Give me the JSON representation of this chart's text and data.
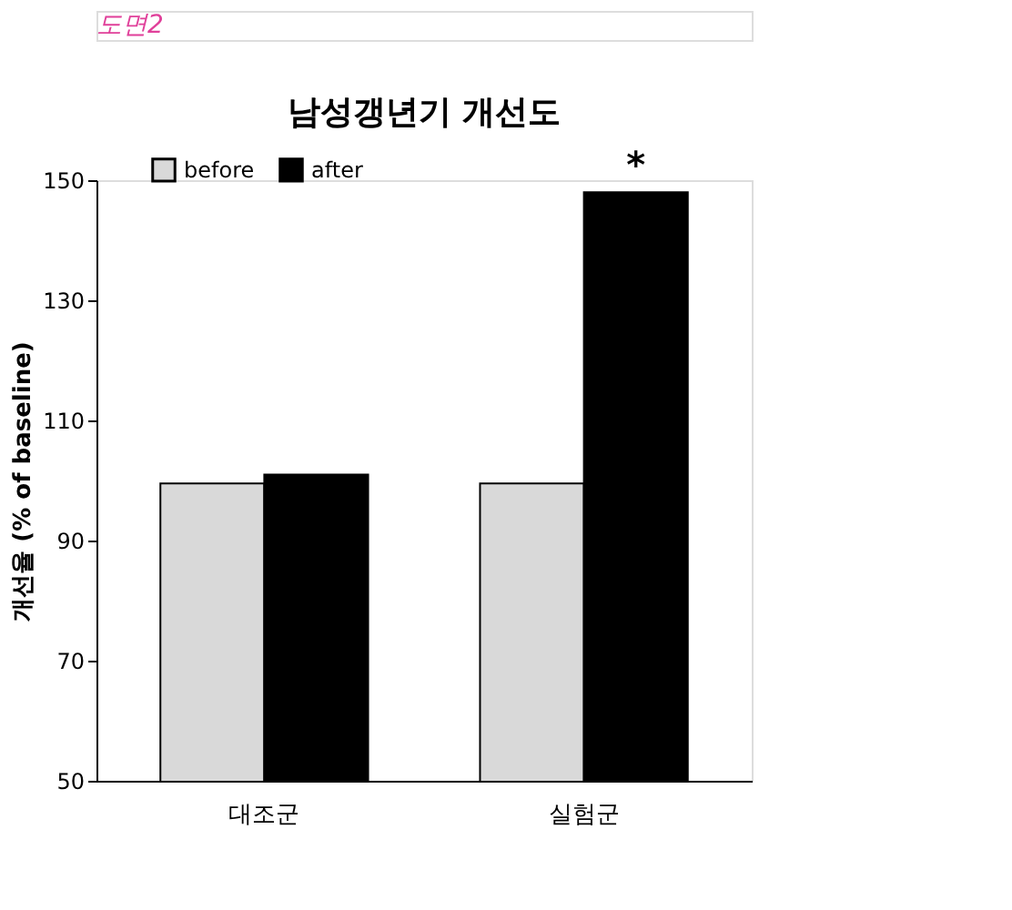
{
  "chart_data": {
    "type": "bar",
    "title": "남성갱년기 개선도",
    "ylabel": "개선율 (% of baseline)",
    "categories": [
      "대조군",
      "실험군"
    ],
    "series": [
      {
        "name": "before",
        "color": "#d9d9d9",
        "values": [
          99.5,
          99.5
        ]
      },
      {
        "name": "after",
        "color": "#000000",
        "values": [
          101,
          148
        ]
      }
    ],
    "ylim": [
      50,
      150
    ],
    "yticks": [
      50,
      70,
      90,
      110,
      130,
      150
    ],
    "grid": false,
    "legend": "top left",
    "annotations": [
      "도면2",
      {
        "text": "*",
        "x": "실험군",
        "y": 148
      }
    ]
  }
}
